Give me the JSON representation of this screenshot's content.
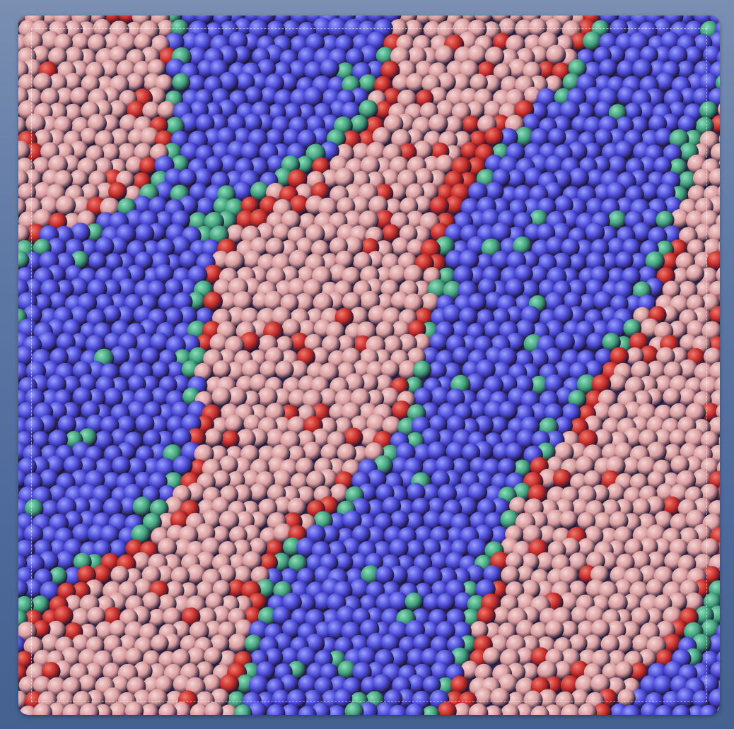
{
  "scene": {
    "type": "molecular-simulation-snapshot",
    "description_visible_text": "",
    "particle_types": [
      {
        "name": "A",
        "color": "#4a48d6",
        "highlight": "#9aa0ff"
      },
      {
        "name": "B",
        "color": "#d89a9c",
        "highlight": "#f6d6d6"
      },
      {
        "name": "C",
        "color": "#c42a26",
        "highlight": "#f07a70"
      },
      {
        "name": "D",
        "color": "#3f9e7a",
        "highlight": "#8fe0bd"
      }
    ],
    "background_colors": [
      "#7a8fb2",
      "#45618f"
    ],
    "box_fill": "#2a2450",
    "box_outline": "dashed-white"
  }
}
